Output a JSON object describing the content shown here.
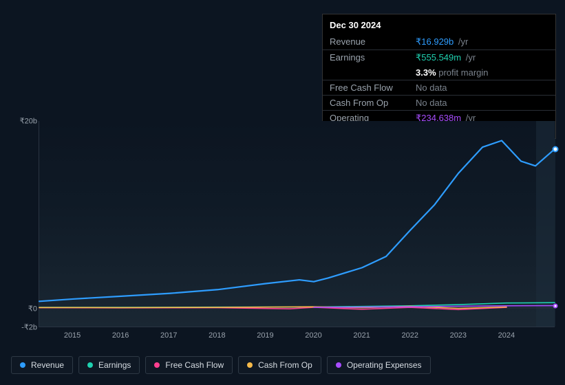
{
  "tooltip": {
    "date": "Dec 30 2024",
    "rows": [
      {
        "label": "Revenue",
        "amount": "₹16.929b",
        "amount_color": "#2e9dff",
        "unit": "/yr",
        "sub": null
      },
      {
        "label": "Earnings",
        "amount": "₹555.549m",
        "amount_color": "#1fd1b0",
        "unit": "/yr",
        "sub": {
          "pct": "3.3%",
          "text": "profit margin"
        }
      },
      {
        "label": "Free Cash Flow",
        "amount": "No data",
        "amount_color": "#7a828c",
        "unit": null,
        "sub": null
      },
      {
        "label": "Cash From Op",
        "amount": "No data",
        "amount_color": "#7a828c",
        "unit": null,
        "sub": null
      },
      {
        "label": "Operating Expenses",
        "amount": "₹234.638m",
        "amount_color": "#a84dff",
        "unit": "/yr",
        "sub": null
      }
    ]
  },
  "chart": {
    "type": "line",
    "ylim_b": [
      -2,
      20
    ],
    "ytick_labels": [
      {
        "v": 20,
        "label": "₹20b"
      },
      {
        "v": 0,
        "label": "₹0"
      },
      {
        "v": -2,
        "label": "-₹2b"
      }
    ],
    "x_years": [
      2015,
      2016,
      2017,
      2018,
      2019,
      2020,
      2021,
      2022,
      2023,
      2024
    ],
    "x_domain": [
      2014.3,
      2025.0
    ],
    "future_from": 2024.6,
    "background_color": "#0c1521",
    "grid_color": "#2a3442",
    "tick_fontsize": 11,
    "tick_color": "#9aa3ad",
    "series": [
      {
        "name": "Revenue",
        "color": "#2e9dff",
        "width": 2.2,
        "points": [
          [
            2014.3,
            0.7
          ],
          [
            2015,
            0.95
          ],
          [
            2016,
            1.25
          ],
          [
            2017,
            1.55
          ],
          [
            2018,
            1.95
          ],
          [
            2019,
            2.6
          ],
          [
            2019.7,
            3.0
          ],
          [
            2020,
            2.8
          ],
          [
            2020.3,
            3.2
          ],
          [
            2021,
            4.3
          ],
          [
            2021.5,
            5.5
          ],
          [
            2022,
            8.3
          ],
          [
            2022.5,
            11.0
          ],
          [
            2023,
            14.4
          ],
          [
            2023.5,
            17.2
          ],
          [
            2023.9,
            17.9
          ],
          [
            2024.3,
            15.7
          ],
          [
            2024.6,
            15.2
          ],
          [
            2025.0,
            17.0
          ]
        ]
      },
      {
        "name": "Earnings",
        "color": "#1fd1b0",
        "width": 1.6,
        "points": [
          [
            2014.3,
            0.05
          ],
          [
            2016,
            0.05
          ],
          [
            2018,
            0.08
          ],
          [
            2020,
            0.1
          ],
          [
            2022,
            0.22
          ],
          [
            2023,
            0.35
          ],
          [
            2024,
            0.52
          ],
          [
            2025.0,
            0.56
          ]
        ]
      },
      {
        "name": "Free Cash Flow",
        "color": "#ff3f8f",
        "width": 1.6,
        "points": [
          [
            2014.3,
            0.02
          ],
          [
            2016,
            0.0
          ],
          [
            2018,
            0.02
          ],
          [
            2019.5,
            -0.1
          ],
          [
            2020,
            0.06
          ],
          [
            2021,
            -0.15
          ],
          [
            2022,
            0.05
          ],
          [
            2023,
            -0.18
          ],
          [
            2024,
            0.05
          ]
        ]
      },
      {
        "name": "Cash From Op",
        "color": "#f5b94a",
        "width": 1.6,
        "points": [
          [
            2014.3,
            0.04
          ],
          [
            2016,
            0.03
          ],
          [
            2018,
            0.05
          ],
          [
            2020,
            0.12
          ],
          [
            2021,
            0.02
          ],
          [
            2022,
            0.18
          ],
          [
            2023,
            -0.05
          ],
          [
            2024,
            0.1
          ]
        ]
      },
      {
        "name": "Operating Expenses",
        "color": "#a84dff",
        "width": 1.6,
        "points": [
          [
            2020,
            0.06
          ],
          [
            2021,
            0.08
          ],
          [
            2022,
            0.12
          ],
          [
            2023,
            0.18
          ],
          [
            2024,
            0.22
          ],
          [
            2025.0,
            0.24
          ]
        ]
      }
    ],
    "markers": [
      {
        "x": 2025.0,
        "y": 17.0,
        "color": "#2e9dff",
        "main": true
      },
      {
        "x": 2025.0,
        "y": 0.24,
        "color": "#a84dff",
        "main": false
      }
    ]
  },
  "legend": [
    {
      "label": "Revenue",
      "color": "#2e9dff"
    },
    {
      "label": "Earnings",
      "color": "#1fd1b0"
    },
    {
      "label": "Free Cash Flow",
      "color": "#ff3f8f"
    },
    {
      "label": "Cash From Op",
      "color": "#f5b94a"
    },
    {
      "label": "Operating Expenses",
      "color": "#a84dff"
    }
  ]
}
